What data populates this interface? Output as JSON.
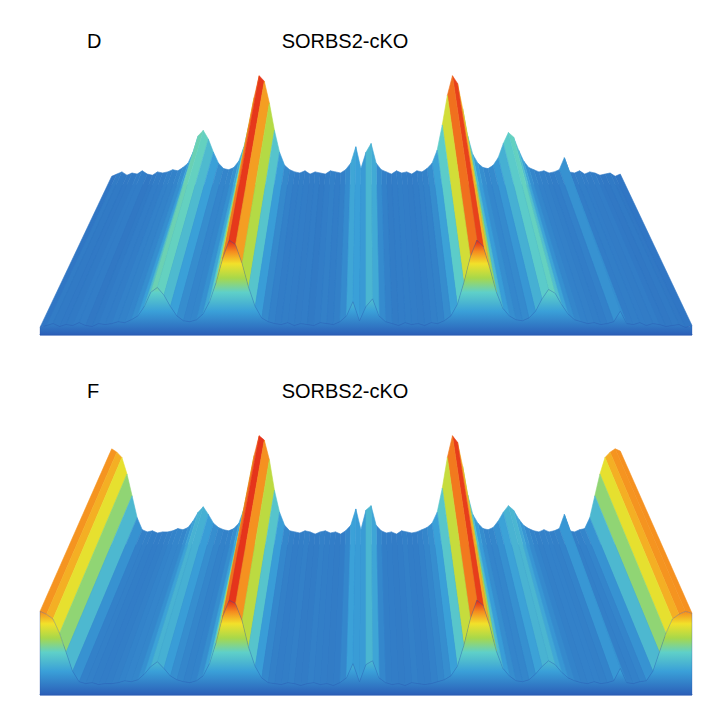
{
  "chart_data": [
    {
      "type": "surface",
      "panel": "D",
      "title": "SORBS2-cKO",
      "tick_labels": false,
      "xlim": [
        0,
        100
      ],
      "ylim": [
        0,
        1
      ],
      "x": [
        0,
        1,
        2,
        3,
        4,
        5,
        6,
        7,
        8,
        9,
        10,
        11,
        12,
        13,
        14,
        15,
        16,
        17,
        18,
        19,
        20,
        21,
        22,
        23,
        24,
        25,
        26,
        27,
        28,
        29,
        30,
        31,
        32,
        33,
        34,
        35,
        36,
        37,
        38,
        39,
        40,
        41,
        42,
        43,
        44,
        45,
        46,
        47,
        48,
        49,
        50,
        51,
        52,
        53,
        54,
        55,
        56,
        57,
        58,
        59,
        60,
        61,
        62,
        63,
        64,
        65,
        66,
        67,
        68,
        69,
        70,
        71,
        72,
        73,
        74,
        75,
        76,
        77,
        78,
        79,
        80,
        81,
        82,
        83,
        84,
        85,
        86,
        87,
        88,
        89,
        90,
        91,
        92,
        93,
        94,
        95,
        96,
        97,
        98,
        99,
        100
      ],
      "values": [
        0.08,
        0.1,
        0.12,
        0.09,
        0.11,
        0.1,
        0.13,
        0.1,
        0.09,
        0.12,
        0.11,
        0.12,
        0.14,
        0.13,
        0.16,
        0.2,
        0.3,
        0.45,
        0.5,
        0.42,
        0.3,
        0.2,
        0.15,
        0.14,
        0.16,
        0.22,
        0.35,
        0.55,
        0.8,
        1.0,
        0.95,
        0.75,
        0.5,
        0.3,
        0.18,
        0.14,
        0.12,
        0.11,
        0.13,
        0.1,
        0.12,
        0.11,
        0.1,
        0.13,
        0.12,
        0.11,
        0.14,
        0.2,
        0.35,
        0.15,
        0.3,
        0.38,
        0.2,
        0.14,
        0.12,
        0.1,
        0.13,
        0.11,
        0.12,
        0.1,
        0.13,
        0.12,
        0.15,
        0.2,
        0.32,
        0.55,
        0.82,
        1.0,
        0.93,
        0.7,
        0.45,
        0.28,
        0.2,
        0.16,
        0.15,
        0.18,
        0.25,
        0.38,
        0.48,
        0.44,
        0.32,
        0.22,
        0.16,
        0.14,
        0.12,
        0.13,
        0.11,
        0.12,
        0.14,
        0.25,
        0.12,
        0.11,
        0.13,
        0.1,
        0.12,
        0.11,
        0.09,
        0.1,
        0.11,
        0.08,
        0.1
      ]
    },
    {
      "type": "surface",
      "panel": "F",
      "title": "SORBS2-cKO",
      "tick_labels": false,
      "xlim": [
        0,
        100
      ],
      "ylim": [
        0,
        1
      ],
      "x": [
        0,
        1,
        2,
        3,
        4,
        5,
        6,
        7,
        8,
        9,
        10,
        11,
        12,
        13,
        14,
        15,
        16,
        17,
        18,
        19,
        20,
        21,
        22,
        23,
        24,
        25,
        26,
        27,
        28,
        29,
        30,
        31,
        32,
        33,
        34,
        35,
        36,
        37,
        38,
        39,
        40,
        41,
        42,
        43,
        44,
        45,
        46,
        47,
        48,
        49,
        50,
        51,
        52,
        53,
        54,
        55,
        56,
        57,
        58,
        59,
        60,
        61,
        62,
        63,
        64,
        65,
        66,
        67,
        68,
        69,
        70,
        71,
        72,
        73,
        74,
        75,
        76,
        77,
        78,
        79,
        80,
        81,
        82,
        83,
        84,
        85,
        86,
        87,
        88,
        89,
        90,
        91,
        92,
        93,
        94,
        95,
        96,
        97,
        98,
        99,
        100
      ],
      "values": [
        0.88,
        0.85,
        0.8,
        0.65,
        0.45,
        0.25,
        0.14,
        0.12,
        0.13,
        0.11,
        0.12,
        0.12,
        0.13,
        0.15,
        0.14,
        0.16,
        0.22,
        0.3,
        0.35,
        0.28,
        0.2,
        0.16,
        0.14,
        0.13,
        0.15,
        0.2,
        0.33,
        0.55,
        0.82,
        1.0,
        0.96,
        0.78,
        0.5,
        0.3,
        0.18,
        0.13,
        0.12,
        0.11,
        0.13,
        0.12,
        0.1,
        0.12,
        0.13,
        0.11,
        0.12,
        0.1,
        0.13,
        0.18,
        0.33,
        0.14,
        0.32,
        0.36,
        0.18,
        0.13,
        0.11,
        0.12,
        0.1,
        0.13,
        0.12,
        0.11,
        0.12,
        0.14,
        0.16,
        0.2,
        0.3,
        0.52,
        0.8,
        1.0,
        0.94,
        0.72,
        0.46,
        0.28,
        0.2,
        0.15,
        0.14,
        0.16,
        0.22,
        0.3,
        0.36,
        0.32,
        0.24,
        0.18,
        0.15,
        0.13,
        0.12,
        0.14,
        0.12,
        0.13,
        0.15,
        0.28,
        0.13,
        0.12,
        0.14,
        0.15,
        0.25,
        0.45,
        0.65,
        0.8,
        0.85,
        0.88,
        0.86
      ]
    }
  ]
}
